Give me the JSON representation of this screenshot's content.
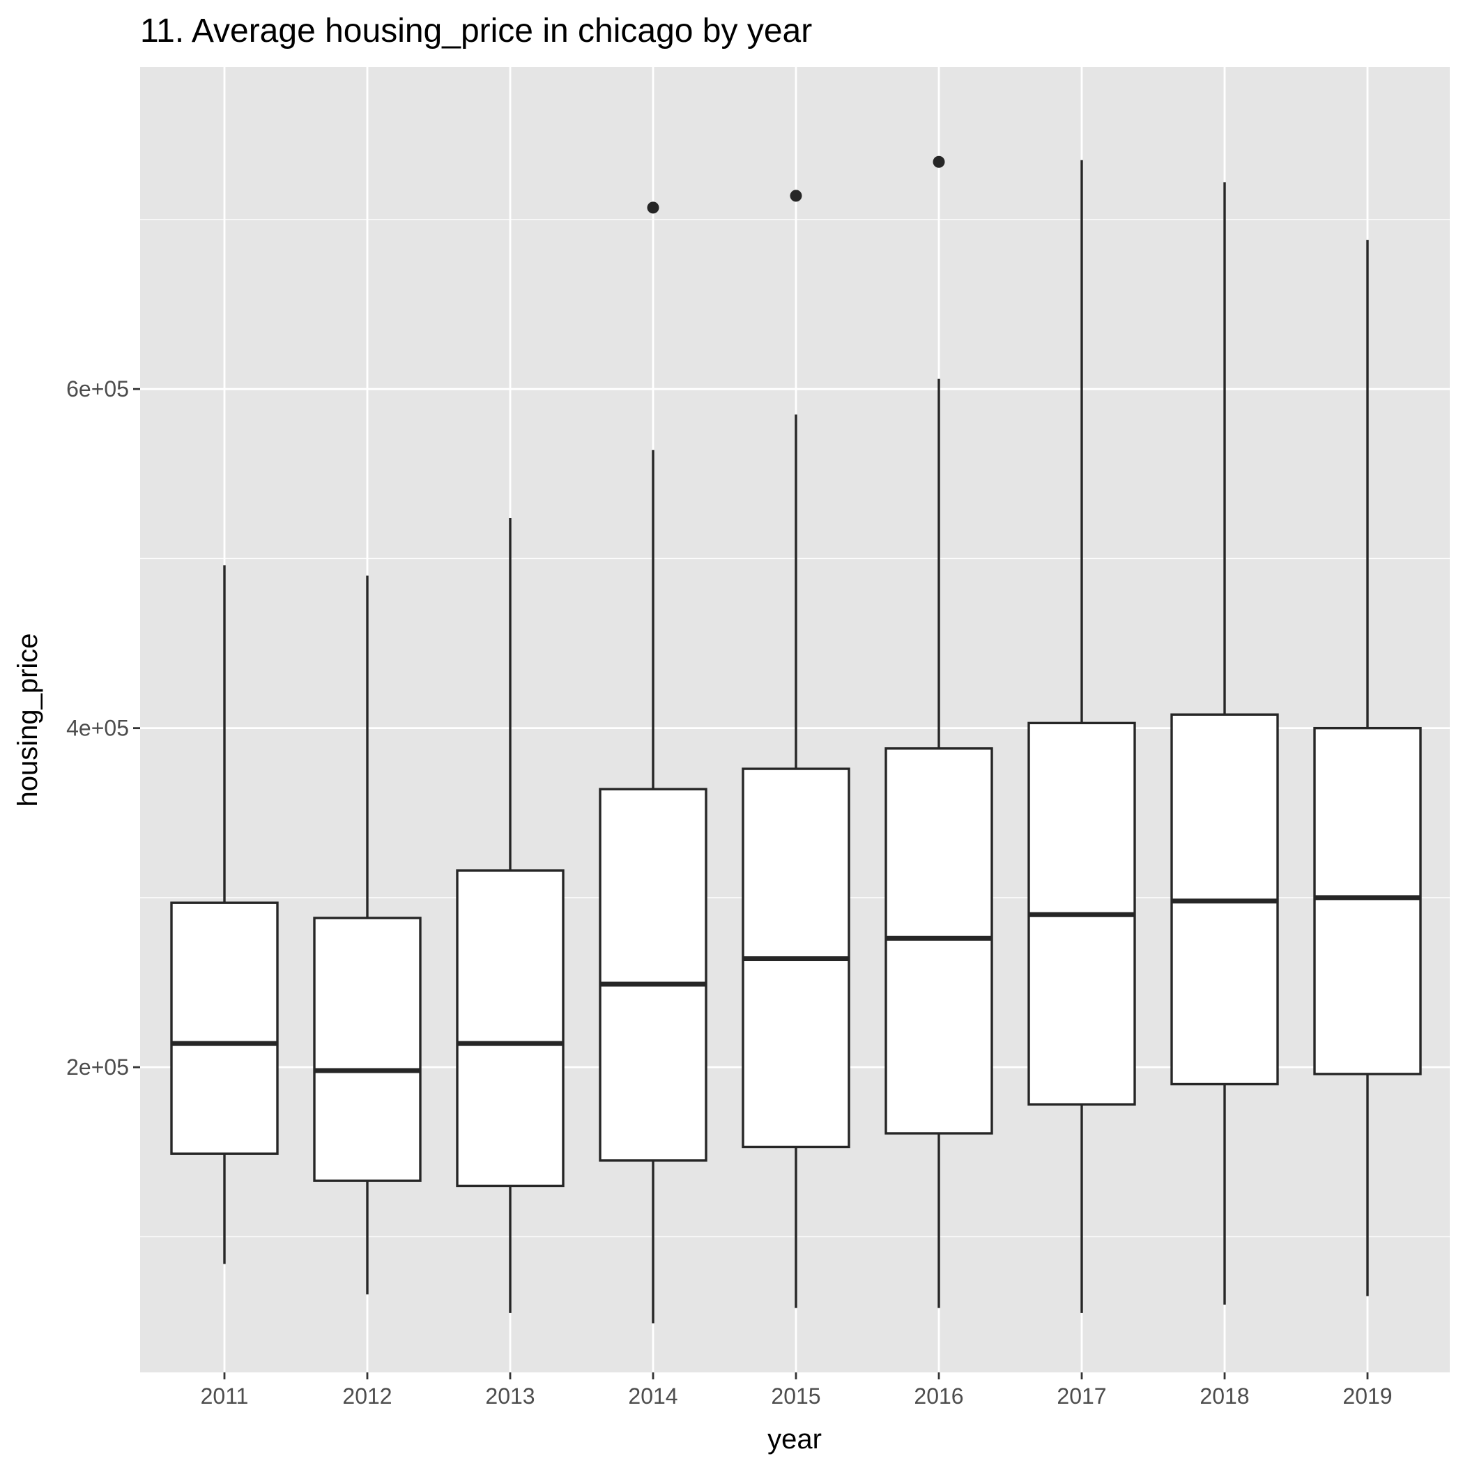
{
  "chart_data": {
    "type": "boxplot",
    "title": "11. Average housing_price in chicago by year",
    "xlabel": "year",
    "ylabel": "housing_price",
    "categories": [
      "2011",
      "2012",
      "2013",
      "2014",
      "2015",
      "2016",
      "2017",
      "2018",
      "2019"
    ],
    "y_ticks": [
      200000,
      400000,
      600000
    ],
    "y_tick_labels": [
      "2e+05",
      "4e+05",
      "6e+05"
    ],
    "ylim": [
      20000,
      790000
    ],
    "grid": true,
    "legend": "none",
    "boxes": [
      {
        "year": "2011",
        "lower_whisker": 84000,
        "q1": 149000,
        "median": 214000,
        "q3": 297000,
        "upper_whisker": 496000,
        "outliers": []
      },
      {
        "year": "2012",
        "lower_whisker": 66000,
        "q1": 133000,
        "median": 198000,
        "q3": 288000,
        "upper_whisker": 490000,
        "outliers": []
      },
      {
        "year": "2013",
        "lower_whisker": 55000,
        "q1": 130000,
        "median": 214000,
        "q3": 316000,
        "upper_whisker": 524000,
        "outliers": []
      },
      {
        "year": "2014",
        "lower_whisker": 49000,
        "q1": 145000,
        "median": 249000,
        "q3": 364000,
        "upper_whisker": 564000,
        "outliers": [
          707000
        ]
      },
      {
        "year": "2015",
        "lower_whisker": 58000,
        "q1": 153000,
        "median": 264000,
        "q3": 376000,
        "upper_whisker": 585000,
        "outliers": [
          714000
        ]
      },
      {
        "year": "2016",
        "lower_whisker": 58000,
        "q1": 161000,
        "median": 276000,
        "q3": 388000,
        "upper_whisker": 606000,
        "outliers": [
          734000
        ]
      },
      {
        "year": "2017",
        "lower_whisker": 55000,
        "q1": 178000,
        "median": 290000,
        "q3": 403000,
        "upper_whisker": 735000,
        "outliers": []
      },
      {
        "year": "2018",
        "lower_whisker": 60000,
        "q1": 190000,
        "median": 298000,
        "q3": 408000,
        "upper_whisker": 722000,
        "outliers": []
      },
      {
        "year": "2019",
        "lower_whisker": 65000,
        "q1": 196000,
        "median": 300000,
        "q3": 400000,
        "upper_whisker": 688000,
        "outliers": []
      }
    ],
    "colors": {
      "panel": "#e5e5e5",
      "grid": "#ffffff",
      "box_fill": "#ffffff",
      "box_line": "#262626",
      "tick_text": "#4d4d4d"
    }
  }
}
